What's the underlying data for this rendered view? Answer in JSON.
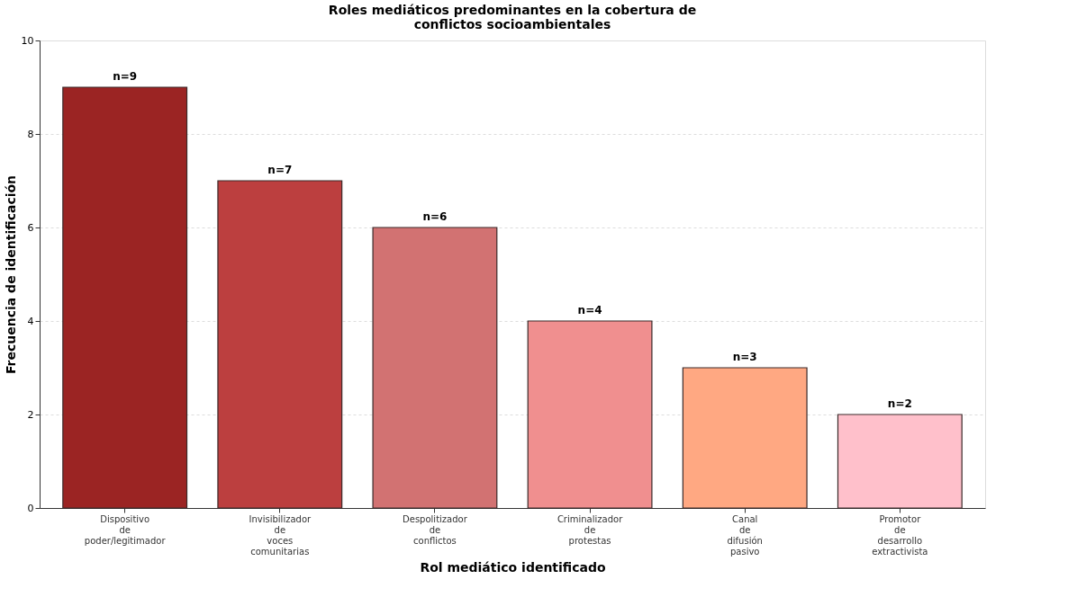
{
  "chart_data": {
    "type": "bar",
    "title": "Roles mediáticos predominantes en la cobertura de\nconflictos socioambientales",
    "xlabel": "Rol mediático identificado",
    "ylabel": "Frecuencia de identificación",
    "categories": [
      "Dispositivo\nde\npoder/legitimador",
      "Invisibilizador\nde\nvoces\ncomunitarias",
      "Despolitizador\nde\nconflictos",
      "Criminalizador\nde\nprotestas",
      "Canal\nde\ndifusión\npasivo",
      "Promotor\nde\ndesarrollo\nextractivista"
    ],
    "values": [
      9,
      7,
      6,
      4,
      3,
      2
    ],
    "colors": [
      "#9b2423",
      "#bc3f3f",
      "#d27272",
      "#f08f8f",
      "#ffa882",
      "#ffc0cb"
    ],
    "value_labels": [
      "n=9",
      "n=7",
      "n=6",
      "n=4",
      "n=3",
      "n=2"
    ],
    "ylim": [
      0,
      10
    ],
    "yticks": [
      0,
      2,
      4,
      6,
      8,
      10
    ],
    "grid": "y",
    "legend": false
  }
}
